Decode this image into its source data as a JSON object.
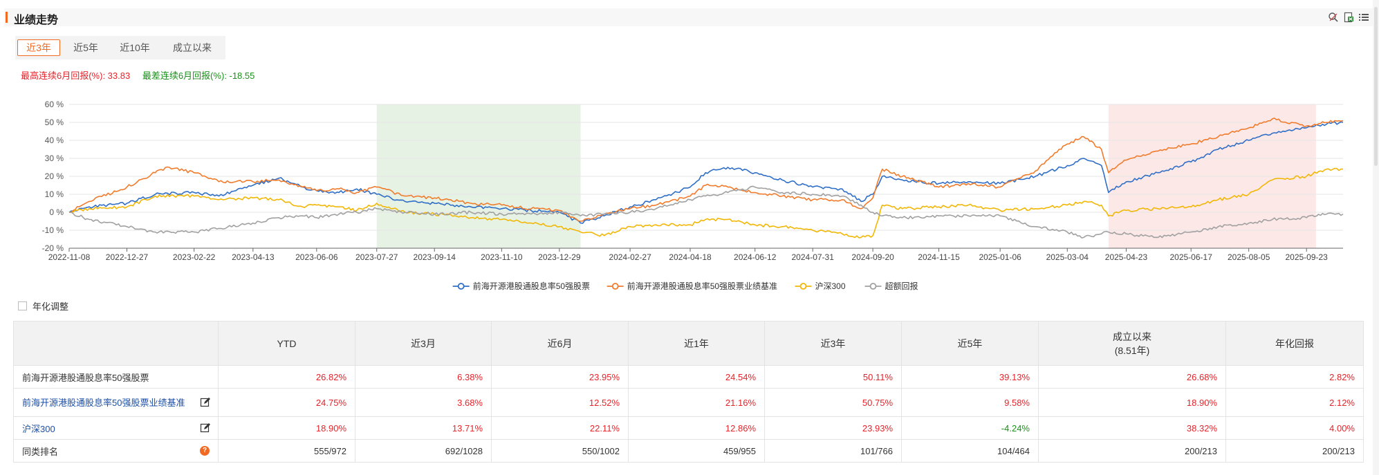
{
  "header": {
    "title": "业绩走势"
  },
  "tabs": [
    {
      "label": "近3年",
      "active": true
    },
    {
      "label": "近5年",
      "active": false
    },
    {
      "label": "近10年",
      "active": false
    },
    {
      "label": "成立以来",
      "active": false
    }
  ],
  "stats": {
    "best": "最高连续6月回报(%): 33.83",
    "worst": "最差连续6月回报(%): -18.55"
  },
  "annualized_label": "年化调整",
  "chart_data": {
    "type": "line",
    "x_ticks": [
      "2022-11-08",
      "2022-12-27",
      "2023-02-22",
      "2023-04-13",
      "2023-06-06",
      "2023-07-27",
      "2023-09-14",
      "2023-11-10",
      "2023-12-29",
      "2024-02-27",
      "2024-04-18",
      "2024-06-12",
      "2024-07-31",
      "2024-09-20",
      "2024-11-15",
      "2025-01-06",
      "2025-03-04",
      "2025-04-23",
      "2025-06-17",
      "2025-08-05",
      "2025-09-23"
    ],
    "x_range": [
      "2022-11-08",
      "2025-10-24"
    ],
    "y_ticks": [
      "-20 %",
      "-10 %",
      "0 %",
      "10 %",
      "20 %",
      "30 %",
      "40 %",
      "50 %",
      "60 %"
    ],
    "ylim": [
      -20,
      60
    ],
    "grid": true,
    "legend_position": "bottom",
    "shaded_ranges": [
      {
        "from": "2023-07-27",
        "to": "2024-01-16",
        "color": "#e6f2e4"
      },
      {
        "from": "2025-04-08",
        "to": "2025-10-01",
        "color": "#fde8e8"
      }
    ],
    "series": [
      {
        "name": "前海开源港股通股息率50强股票",
        "color": "#2f6ec6",
        "points": [
          [
            "2022-11-08",
            0
          ],
          [
            "2022-11-25",
            3
          ],
          [
            "2022-12-27",
            5
          ],
          [
            "2023-01-20",
            10
          ],
          [
            "2023-02-22",
            11
          ],
          [
            "2023-03-15",
            9
          ],
          [
            "2023-04-13",
            15
          ],
          [
            "2023-05-05",
            19
          ],
          [
            "2023-05-25",
            14
          ],
          [
            "2023-06-06",
            12
          ],
          [
            "2023-06-25",
            11
          ],
          [
            "2023-07-10",
            13
          ],
          [
            "2023-07-27",
            10
          ],
          [
            "2023-08-20",
            6
          ],
          [
            "2023-09-14",
            5
          ],
          [
            "2023-10-15",
            3
          ],
          [
            "2023-11-10",
            2
          ],
          [
            "2023-12-05",
            1
          ],
          [
            "2023-12-29",
            0
          ],
          [
            "2024-01-16",
            -6
          ],
          [
            "2024-02-05",
            -2
          ],
          [
            "2024-02-27",
            3
          ],
          [
            "2024-03-20",
            7
          ],
          [
            "2024-04-18",
            14
          ],
          [
            "2024-05-01",
            22
          ],
          [
            "2024-05-20",
            25
          ],
          [
            "2024-06-12",
            22
          ],
          [
            "2024-07-05",
            18
          ],
          [
            "2024-07-31",
            14
          ],
          [
            "2024-08-25",
            13
          ],
          [
            "2024-09-10",
            6
          ],
          [
            "2024-09-20",
            10
          ],
          [
            "2024-09-28",
            20
          ],
          [
            "2024-10-15",
            18
          ],
          [
            "2024-11-15",
            16
          ],
          [
            "2024-12-10",
            17
          ],
          [
            "2025-01-06",
            16
          ],
          [
            "2025-02-05",
            20
          ],
          [
            "2025-03-04",
            26
          ],
          [
            "2025-03-18",
            30
          ],
          [
            "2025-04-02",
            26
          ],
          [
            "2025-04-08",
            11
          ],
          [
            "2025-04-23",
            17
          ],
          [
            "2025-05-20",
            22
          ],
          [
            "2025-06-17",
            28
          ],
          [
            "2025-07-10",
            35
          ],
          [
            "2025-08-05",
            40
          ],
          [
            "2025-08-25",
            44
          ],
          [
            "2025-09-23",
            47
          ],
          [
            "2025-10-10",
            49
          ],
          [
            "2025-10-24",
            50
          ]
        ]
      },
      {
        "name": "前海开源港股通股息率50强股票业绩基准",
        "color": "#f07b2b",
        "points": [
          [
            "2022-11-08",
            0
          ],
          [
            "2022-11-25",
            6
          ],
          [
            "2022-12-27",
            14
          ],
          [
            "2023-01-20",
            22
          ],
          [
            "2023-02-01",
            25
          ],
          [
            "2023-02-22",
            22
          ],
          [
            "2023-03-15",
            17
          ],
          [
            "2023-04-13",
            17
          ],
          [
            "2023-05-05",
            18
          ],
          [
            "2023-05-25",
            14
          ],
          [
            "2023-06-06",
            12
          ],
          [
            "2023-06-25",
            13
          ],
          [
            "2023-07-10",
            11
          ],
          [
            "2023-07-27",
            14
          ],
          [
            "2023-08-20",
            9
          ],
          [
            "2023-09-14",
            8
          ],
          [
            "2023-10-15",
            5
          ],
          [
            "2023-11-10",
            4
          ],
          [
            "2023-12-05",
            2
          ],
          [
            "2023-12-29",
            1
          ],
          [
            "2024-01-16",
            -5
          ],
          [
            "2024-02-05",
            -1
          ],
          [
            "2024-02-27",
            2
          ],
          [
            "2024-03-20",
            4
          ],
          [
            "2024-04-18",
            9
          ],
          [
            "2024-05-01",
            15
          ],
          [
            "2024-05-20",
            14
          ],
          [
            "2024-06-12",
            11
          ],
          [
            "2024-07-05",
            9
          ],
          [
            "2024-07-31",
            7
          ],
          [
            "2024-08-25",
            7
          ],
          [
            "2024-09-10",
            2
          ],
          [
            "2024-09-20",
            8
          ],
          [
            "2024-09-28",
            24
          ],
          [
            "2024-10-15",
            20
          ],
          [
            "2024-11-15",
            14
          ],
          [
            "2024-12-10",
            16
          ],
          [
            "2025-01-06",
            14
          ],
          [
            "2025-02-05",
            23
          ],
          [
            "2025-02-25",
            35
          ],
          [
            "2025-03-04",
            38
          ],
          [
            "2025-03-18",
            42
          ],
          [
            "2025-04-02",
            35
          ],
          [
            "2025-04-08",
            22
          ],
          [
            "2025-04-23",
            29
          ],
          [
            "2025-05-20",
            34
          ],
          [
            "2025-06-17",
            38
          ],
          [
            "2025-07-10",
            42
          ],
          [
            "2025-08-05",
            47
          ],
          [
            "2025-08-25",
            52
          ],
          [
            "2025-09-23",
            48
          ],
          [
            "2025-10-10",
            50
          ],
          [
            "2025-10-24",
            51
          ]
        ]
      },
      {
        "name": "沪深300",
        "color": "#f2b705",
        "points": [
          [
            "2022-11-08",
            0
          ],
          [
            "2022-11-25",
            2
          ],
          [
            "2022-12-27",
            3
          ],
          [
            "2023-01-20",
            9
          ],
          [
            "2023-02-22",
            9
          ],
          [
            "2023-03-15",
            7
          ],
          [
            "2023-04-13",
            8
          ],
          [
            "2023-05-05",
            7
          ],
          [
            "2023-05-25",
            3
          ],
          [
            "2023-06-06",
            4
          ],
          [
            "2023-06-25",
            3
          ],
          [
            "2023-07-10",
            1
          ],
          [
            "2023-07-27",
            5
          ],
          [
            "2023-08-20",
            0
          ],
          [
            "2023-09-14",
            -1
          ],
          [
            "2023-10-15",
            -3
          ],
          [
            "2023-11-10",
            -4
          ],
          [
            "2023-12-05",
            -6
          ],
          [
            "2023-12-29",
            -8
          ],
          [
            "2024-01-16",
            -11
          ],
          [
            "2024-02-05",
            -13
          ],
          [
            "2024-02-27",
            -8
          ],
          [
            "2024-03-20",
            -7
          ],
          [
            "2024-04-18",
            -7
          ],
          [
            "2024-05-01",
            -4
          ],
          [
            "2024-05-20",
            -4
          ],
          [
            "2024-06-12",
            -7
          ],
          [
            "2024-07-05",
            -8
          ],
          [
            "2024-07-31",
            -10
          ],
          [
            "2024-08-25",
            -12
          ],
          [
            "2024-09-10",
            -14
          ],
          [
            "2024-09-20",
            -13
          ],
          [
            "2024-09-28",
            4
          ],
          [
            "2024-10-15",
            2
          ],
          [
            "2024-11-15",
            3
          ],
          [
            "2024-12-10",
            4
          ],
          [
            "2025-01-06",
            1
          ],
          [
            "2025-02-05",
            2
          ],
          [
            "2025-03-04",
            4
          ],
          [
            "2025-03-18",
            6
          ],
          [
            "2025-04-02",
            4
          ],
          [
            "2025-04-08",
            -2
          ],
          [
            "2025-04-23",
            1
          ],
          [
            "2025-05-20",
            2
          ],
          [
            "2025-06-17",
            3
          ],
          [
            "2025-07-10",
            7
          ],
          [
            "2025-08-05",
            10
          ],
          [
            "2025-08-25",
            18
          ],
          [
            "2025-09-23",
            20
          ],
          [
            "2025-10-10",
            24
          ],
          [
            "2025-10-24",
            24
          ]
        ]
      },
      {
        "name": "超额回报",
        "color": "#a0a0a0",
        "points": [
          [
            "2022-11-08",
            0
          ],
          [
            "2022-11-25",
            -4
          ],
          [
            "2022-12-27",
            -8
          ],
          [
            "2023-01-20",
            -11
          ],
          [
            "2023-02-22",
            -11
          ],
          [
            "2023-03-15",
            -9
          ],
          [
            "2023-04-13",
            -6
          ],
          [
            "2023-05-05",
            -3
          ],
          [
            "2023-05-25",
            -2
          ],
          [
            "2023-06-06",
            -3
          ],
          [
            "2023-06-25",
            -1
          ],
          [
            "2023-07-10",
            0
          ],
          [
            "2023-07-27",
            2
          ],
          [
            "2023-08-20",
            0
          ],
          [
            "2023-09-14",
            -1
          ],
          [
            "2023-10-15",
            0
          ],
          [
            "2023-11-10",
            -1
          ],
          [
            "2023-12-05",
            -1
          ],
          [
            "2023-12-29",
            0
          ],
          [
            "2024-01-16",
            -2
          ],
          [
            "2024-02-05",
            -1
          ],
          [
            "2024-02-27",
            0
          ],
          [
            "2024-03-20",
            2
          ],
          [
            "2024-04-18",
            7
          ],
          [
            "2024-05-01",
            9
          ],
          [
            "2024-05-20",
            11
          ],
          [
            "2024-06-12",
            14
          ],
          [
            "2024-07-05",
            11
          ],
          [
            "2024-07-31",
            10
          ],
          [
            "2024-08-25",
            9
          ],
          [
            "2024-09-10",
            4
          ],
          [
            "2024-09-20",
            0
          ],
          [
            "2024-09-28",
            -2
          ],
          [
            "2024-10-15",
            -3
          ],
          [
            "2024-11-15",
            -2
          ],
          [
            "2024-12-10",
            -2
          ],
          [
            "2025-01-06",
            -2
          ],
          [
            "2025-02-05",
            -8
          ],
          [
            "2025-03-04",
            -11
          ],
          [
            "2025-03-18",
            -14
          ],
          [
            "2025-04-02",
            -12
          ],
          [
            "2025-04-08",
            -11
          ],
          [
            "2025-04-23",
            -12
          ],
          [
            "2025-05-20",
            -14
          ],
          [
            "2025-06-17",
            -11
          ],
          [
            "2025-07-10",
            -8
          ],
          [
            "2025-08-05",
            -6
          ],
          [
            "2025-08-25",
            -4
          ],
          [
            "2025-09-23",
            -3
          ],
          [
            "2025-10-10",
            -1
          ],
          [
            "2025-10-24",
            -1
          ]
        ]
      }
    ]
  },
  "table": {
    "headers": [
      "",
      "YTD",
      "近3月",
      "近6月",
      "近1年",
      "近3年",
      "近5年",
      "成立以来",
      "年化回报"
    ],
    "since_inception_sub": "(8.51年)",
    "rows": [
      {
        "name": "前海开源港股通股息率50强股票",
        "link": false,
        "icon": "",
        "cells": [
          {
            "v": "26.82%",
            "c": "red"
          },
          {
            "v": "6.38%",
            "c": "red"
          },
          {
            "v": "23.95%",
            "c": "red"
          },
          {
            "v": "24.54%",
            "c": "red"
          },
          {
            "v": "50.11%",
            "c": "red"
          },
          {
            "v": "39.13%",
            "c": "red"
          },
          {
            "v": "26.68%",
            "c": "red"
          },
          {
            "v": "2.82%",
            "c": "red"
          }
        ]
      },
      {
        "name": "前海开源港股通股息率50强股票业绩基准",
        "link": true,
        "icon": "edit",
        "cells": [
          {
            "v": "24.75%",
            "c": "red"
          },
          {
            "v": "3.68%",
            "c": "red"
          },
          {
            "v": "12.52%",
            "c": "red"
          },
          {
            "v": "21.16%",
            "c": "red"
          },
          {
            "v": "50.75%",
            "c": "red"
          },
          {
            "v": "9.58%",
            "c": "red"
          },
          {
            "v": "18.90%",
            "c": "red"
          },
          {
            "v": "2.12%",
            "c": "red"
          }
        ]
      },
      {
        "name": "沪深300",
        "link": true,
        "icon": "edit",
        "cells": [
          {
            "v": "18.90%",
            "c": "red"
          },
          {
            "v": "13.71%",
            "c": "red"
          },
          {
            "v": "22.11%",
            "c": "red"
          },
          {
            "v": "12.86%",
            "c": "red"
          },
          {
            "v": "23.93%",
            "c": "red"
          },
          {
            "v": "-4.24%",
            "c": "green"
          },
          {
            "v": "38.32%",
            "c": "red"
          },
          {
            "v": "4.00%",
            "c": "red"
          }
        ]
      },
      {
        "name": "同类排名",
        "link": false,
        "icon": "question",
        "cells": [
          {
            "v": "555/972",
            "c": "dark"
          },
          {
            "v": "692/1028",
            "c": "dark"
          },
          {
            "v": "550/1002",
            "c": "dark"
          },
          {
            "v": "459/955",
            "c": "dark"
          },
          {
            "v": "101/766",
            "c": "dark"
          },
          {
            "v": "104/464",
            "c": "dark"
          },
          {
            "v": "200/213",
            "c": "dark"
          },
          {
            "v": "200/213",
            "c": "dark"
          }
        ]
      }
    ]
  },
  "icons": {
    "edit": "edit-icon",
    "question": "question-mark-icon",
    "tool1": "zoom-icon",
    "tool2": "export-excel-icon",
    "tool3": "list-menu-icon"
  }
}
